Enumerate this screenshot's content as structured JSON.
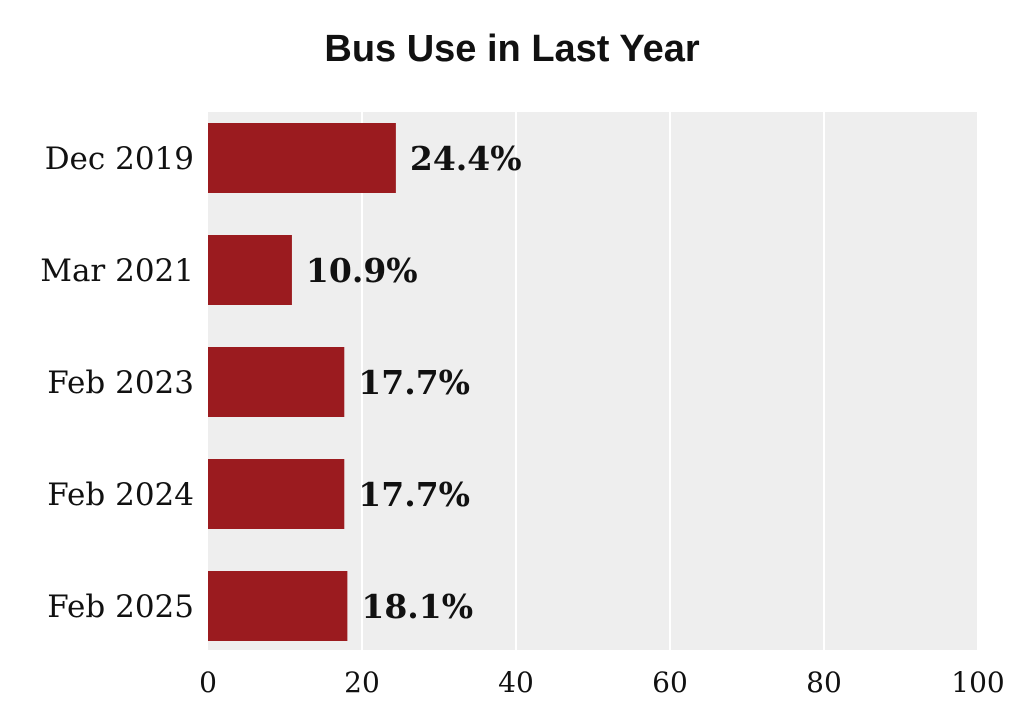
{
  "chart_data": {
    "type": "bar",
    "orientation": "horizontal",
    "title": "Bus Use in Last Year",
    "categories": [
      "Dec 2019",
      "Mar 2021",
      "Feb 2023",
      "Feb 2024",
      "Feb 2025"
    ],
    "values": [
      24.4,
      10.9,
      17.7,
      17.7,
      18.1
    ],
    "value_labels": [
      "24.4%",
      "10.9%",
      "17.7%",
      "17.7%",
      "18.1%"
    ],
    "xlim": [
      0,
      100
    ],
    "xticks": [
      0,
      20,
      40,
      60,
      80,
      100
    ],
    "xtick_labels": [
      "0",
      "20",
      "40",
      "60",
      "80",
      "100"
    ],
    "xlabel": "",
    "ylabel": "",
    "grid": "vertical",
    "bar_color": "#9b1b1f",
    "plot_background": "#eeeeee",
    "grid_color": "#ffffff"
  }
}
